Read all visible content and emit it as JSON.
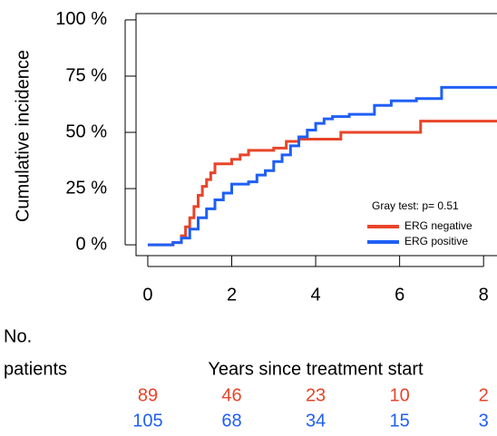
{
  "chart_data": {
    "type": "step",
    "y_label": "Cumulative incidence",
    "annotation": "Gray test: p= 0.51",
    "xlim": [
      -0.28,
      8.32
    ],
    "ylim": [
      -4.8,
      102.8
    ],
    "xticks": [
      0,
      2,
      4,
      6,
      8
    ],
    "yticks": [
      {
        "value": 0,
        "label": "0 %"
      },
      {
        "value": 25,
        "label": "25 %"
      },
      {
        "value": 50,
        "label": "50 %"
      },
      {
        "value": 75,
        "label": "75 %"
      },
      {
        "value": 100,
        "label": "100 %"
      }
    ],
    "legend": "bottom-right",
    "series": [
      {
        "name": "ERG negative",
        "color": "#e8452a",
        "x": [
          0,
          0.5,
          0.6,
          0.8,
          0.9,
          1.0,
          1.1,
          1.2,
          1.3,
          1.4,
          1.5,
          1.6,
          2.0,
          2.2,
          2.4,
          3.0,
          3.3,
          3.6,
          4.6,
          6.5,
          8.32
        ],
        "values": [
          0,
          0,
          1,
          4,
          8,
          12,
          17,
          22,
          26,
          29,
          32,
          36,
          38,
          40,
          42,
          43,
          46,
          47,
          50,
          55,
          55
        ]
      },
      {
        "name": "ERG positive",
        "color": "#1f5ff5",
        "x": [
          0,
          0.6,
          0.8,
          1.0,
          1.2,
          1.4,
          1.6,
          1.8,
          2.0,
          2.4,
          2.6,
          2.8,
          3.0,
          3.2,
          3.4,
          3.6,
          3.8,
          4.0,
          4.2,
          4.4,
          4.8,
          5.4,
          5.8,
          6.4,
          7.0,
          8.32
        ],
        "values": [
          0,
          1,
          3,
          7,
          12,
          16,
          20,
          23,
          27,
          28,
          31,
          33,
          37,
          40,
          44,
          48,
          51,
          54,
          56,
          57,
          58,
          62,
          64,
          65,
          70,
          70
        ]
      }
    ]
  },
  "risk_table": {
    "label": [
      "No.",
      "patients"
    ],
    "title": "Years since treatment start",
    "rows": [
      [
        89,
        46,
        23,
        10,
        2
      ],
      [
        105,
        68,
        34,
        15,
        3
      ]
    ]
  }
}
